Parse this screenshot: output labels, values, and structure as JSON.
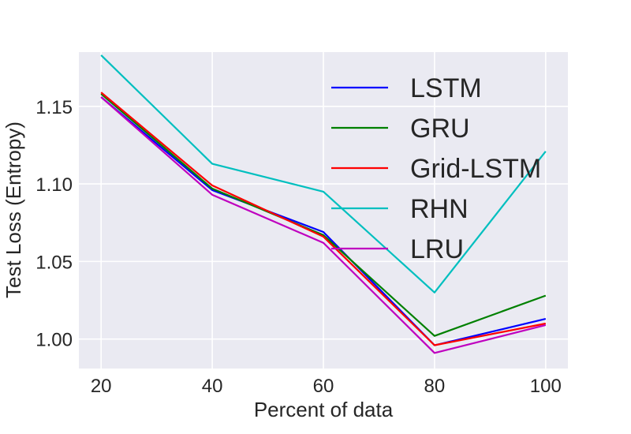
{
  "chart_data": {
    "type": "line",
    "title": "",
    "xlabel": "Percent of data",
    "ylabel": "Test Loss (Entropy)",
    "x": [
      20,
      40,
      60,
      80,
      100
    ],
    "x_tick_labels": [
      "20",
      "40",
      "60",
      "80",
      "100"
    ],
    "y_tick_values": [
      1.0,
      1.05,
      1.1,
      1.15
    ],
    "y_tick_labels": [
      "1.00",
      "1.05",
      "1.10",
      "1.15"
    ],
    "xlim": [
      16,
      104
    ],
    "ylim": [
      0.981,
      1.185
    ],
    "grid": true,
    "legend_position": "upper-right",
    "series": [
      {
        "name": "LSTM",
        "color": "#0000ff",
        "values": [
          1.156,
          1.096,
          1.069,
          0.996,
          1.013
        ]
      },
      {
        "name": "GRU",
        "color": "#008000",
        "values": [
          1.158,
          1.097,
          1.067,
          1.002,
          1.028
        ]
      },
      {
        "name": "Grid-LSTM",
        "color": "#ff0000",
        "values": [
          1.159,
          1.099,
          1.066,
          0.996,
          1.01
        ]
      },
      {
        "name": "RHN",
        "color": "#00bfbf",
        "values": [
          1.183,
          1.113,
          1.095,
          1.03,
          1.121
        ]
      },
      {
        "name": "LRU",
        "color": "#bf00bf",
        "values": [
          1.156,
          1.093,
          1.062,
          0.991,
          1.009
        ]
      }
    ]
  }
}
